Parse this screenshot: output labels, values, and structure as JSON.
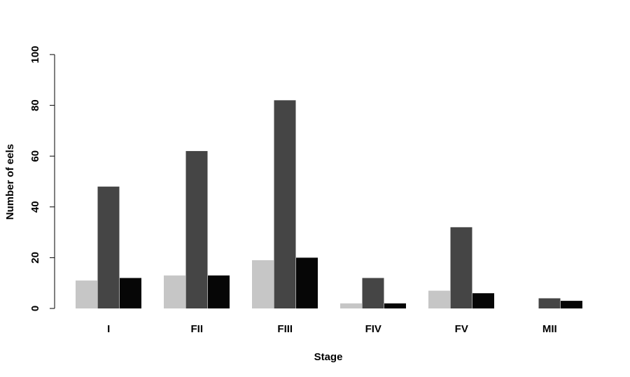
{
  "chart_data": {
    "type": "bar",
    "title": "",
    "xlabel": "Stage",
    "ylabel": "Number of eels",
    "categories": [
      "I",
      "FII",
      "FIII",
      "FIV",
      "FV",
      "MII"
    ],
    "series": [
      {
        "values": [
          11,
          13,
          19,
          2,
          7,
          0
        ],
        "color": "#c6c6c6"
      },
      {
        "values": [
          48,
          62,
          82,
          12,
          32,
          4
        ],
        "color": "#454545"
      },
      {
        "values": [
          12,
          13,
          20,
          2,
          6,
          3
        ],
        "color": "#060606"
      }
    ],
    "ylim": [
      0,
      100
    ],
    "yticks": [
      0,
      20,
      40,
      60,
      80,
      100
    ],
    "grid": false,
    "legend": "none"
  }
}
